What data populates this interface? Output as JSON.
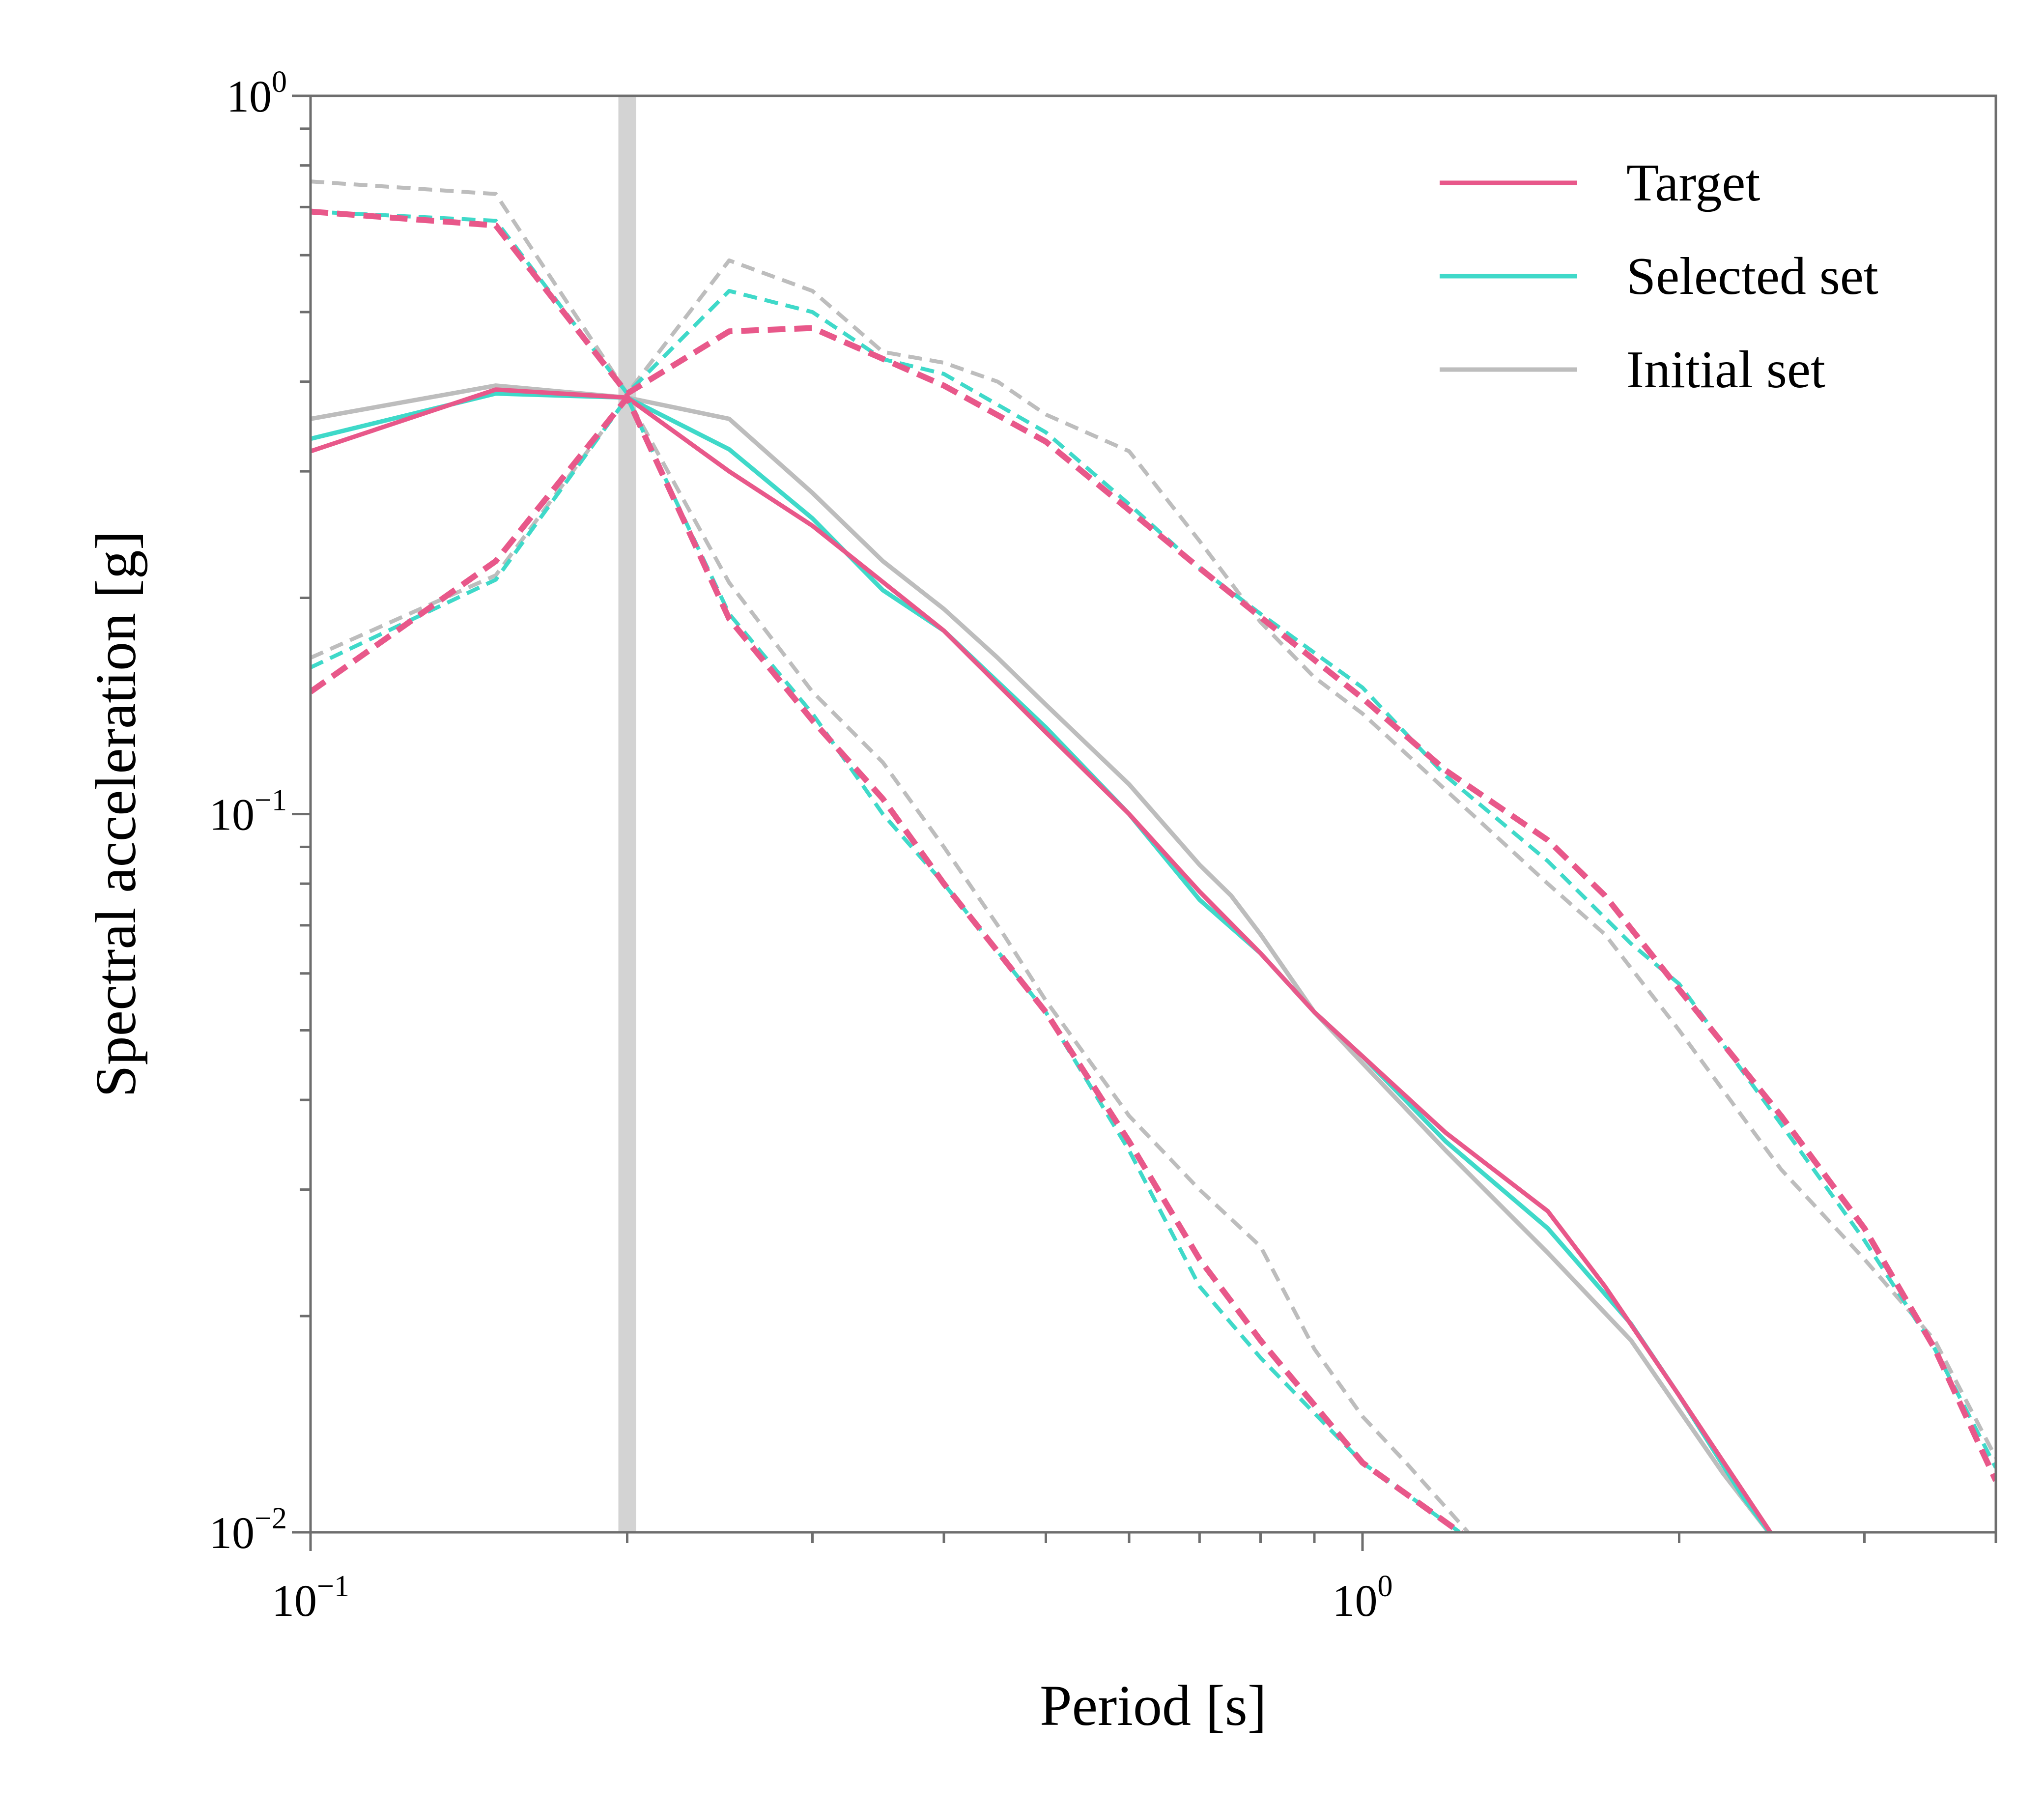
{
  "chart_data": {
    "type": "line",
    "xlabel": "Period [s]",
    "ylabel": "Spectral acceleration [g]",
    "xscale": "log",
    "yscale": "log",
    "xlim": [
      0.1,
      4.0
    ],
    "ylim": [
      0.01,
      1.0
    ],
    "x_major_ticks": [
      {
        "value": 0.1,
        "base": "10",
        "exp": "−1"
      },
      {
        "value": 1.0,
        "base": "10",
        "exp": "0"
      }
    ],
    "y_major_ticks": [
      {
        "value": 0.01,
        "base": "10",
        "exp": "−2"
      },
      {
        "value": 0.1,
        "base": "10",
        "exp": "−1"
      },
      {
        "value": 1.0,
        "base": "10",
        "exp": "0"
      }
    ],
    "grid": false,
    "legend_position": "top-right",
    "conditioning_period": 0.2,
    "colors": {
      "target": "#e8588a",
      "selected": "#3fd9c9",
      "initial": "#bdbdbd",
      "conditioning_line": "#d3d3d3"
    },
    "legend": [
      {
        "label": "Target",
        "key": "target"
      },
      {
        "label": "Selected set",
        "key": "selected"
      },
      {
        "label": "Initial set",
        "key": "initial"
      }
    ],
    "series": [
      {
        "key": "initial",
        "style": "median",
        "points": [
          [
            0.1,
            0.355
          ],
          [
            0.15,
            0.395
          ],
          [
            0.2,
            0.38
          ],
          [
            0.25,
            0.355
          ],
          [
            0.3,
            0.28
          ],
          [
            0.35,
            0.225
          ],
          [
            0.4,
            0.193
          ],
          [
            0.45,
            0.165
          ],
          [
            0.5,
            0.142
          ],
          [
            0.6,
            0.11
          ],
          [
            0.7,
            0.085
          ],
          [
            0.75,
            0.077
          ],
          [
            0.8,
            0.068
          ],
          [
            0.9,
            0.053
          ],
          [
            1.0,
            0.045
          ],
          [
            1.2,
            0.034
          ],
          [
            1.5,
            0.0245
          ],
          [
            1.8,
            0.0185
          ],
          [
            2.2,
            0.0121
          ],
          [
            2.5,
            0.0095
          ]
        ]
      },
      {
        "key": "selected",
        "style": "median",
        "points": [
          [
            0.1,
            0.333
          ],
          [
            0.15,
            0.385
          ],
          [
            0.2,
            0.38
          ],
          [
            0.25,
            0.322
          ],
          [
            0.3,
            0.258
          ],
          [
            0.35,
            0.205
          ],
          [
            0.4,
            0.18
          ],
          [
            0.5,
            0.132
          ],
          [
            0.6,
            0.1
          ],
          [
            0.7,
            0.076
          ],
          [
            0.8,
            0.064
          ],
          [
            0.9,
            0.053
          ],
          [
            1.0,
            0.046
          ],
          [
            1.2,
            0.035
          ],
          [
            1.5,
            0.0265
          ],
          [
            1.8,
            0.0195
          ],
          [
            2.0,
            0.0155
          ],
          [
            2.3,
            0.0112
          ],
          [
            2.5,
            0.0095
          ]
        ]
      },
      {
        "key": "target",
        "style": "median",
        "points": [
          [
            0.1,
            0.32
          ],
          [
            0.15,
            0.39
          ],
          [
            0.2,
            0.38
          ],
          [
            0.25,
            0.3
          ],
          [
            0.3,
            0.252
          ],
          [
            0.4,
            0.18
          ],
          [
            0.5,
            0.13
          ],
          [
            0.6,
            0.1
          ],
          [
            0.7,
            0.078
          ],
          [
            0.8,
            0.064
          ],
          [
            0.9,
            0.053
          ],
          [
            1.0,
            0.046
          ],
          [
            1.2,
            0.036
          ],
          [
            1.5,
            0.028
          ],
          [
            1.7,
            0.022
          ],
          [
            2.0,
            0.0155
          ],
          [
            2.5,
            0.0095
          ]
        ]
      },
      {
        "key": "initial",
        "style": "upper",
        "points": [
          [
            0.1,
            0.76
          ],
          [
            0.15,
            0.73
          ],
          [
            0.2,
            0.385
          ],
          [
            0.25,
            0.59
          ],
          [
            0.3,
            0.535
          ],
          [
            0.35,
            0.44
          ],
          [
            0.4,
            0.425
          ],
          [
            0.45,
            0.4
          ],
          [
            0.5,
            0.36
          ],
          [
            0.6,
            0.32
          ],
          [
            0.7,
            0.24
          ],
          [
            0.8,
            0.185
          ],
          [
            0.9,
            0.155
          ],
          [
            1.0,
            0.138
          ],
          [
            1.2,
            0.108
          ],
          [
            1.5,
            0.08
          ],
          [
            1.7,
            0.068
          ],
          [
            2.0,
            0.05
          ],
          [
            2.5,
            0.032
          ],
          [
            3.0,
            0.024
          ],
          [
            3.5,
            0.0185
          ],
          [
            4.0,
            0.0127
          ]
        ]
      },
      {
        "key": "selected",
        "style": "upper",
        "points": [
          [
            0.1,
            0.69
          ],
          [
            0.15,
            0.67
          ],
          [
            0.2,
            0.385
          ],
          [
            0.25,
            0.535
          ],
          [
            0.3,
            0.5
          ],
          [
            0.35,
            0.43
          ],
          [
            0.4,
            0.41
          ],
          [
            0.5,
            0.34
          ],
          [
            0.6,
            0.27
          ],
          [
            0.7,
            0.22
          ],
          [
            0.8,
            0.19
          ],
          [
            1.0,
            0.15
          ],
          [
            1.2,
            0.113
          ],
          [
            1.5,
            0.086
          ],
          [
            1.8,
            0.066
          ],
          [
            2.0,
            0.058
          ],
          [
            2.5,
            0.037
          ],
          [
            3.0,
            0.0255
          ],
          [
            3.5,
            0.018
          ],
          [
            4.0,
            0.0123
          ]
        ]
      },
      {
        "key": "target",
        "style": "upper",
        "points": [
          [
            0.1,
            0.69
          ],
          [
            0.15,
            0.66
          ],
          [
            0.2,
            0.385
          ],
          [
            0.25,
            0.47
          ],
          [
            0.3,
            0.475
          ],
          [
            0.4,
            0.395
          ],
          [
            0.5,
            0.33
          ],
          [
            0.6,
            0.265
          ],
          [
            0.7,
            0.22
          ],
          [
            0.8,
            0.188
          ],
          [
            1.0,
            0.145
          ],
          [
            1.2,
            0.115
          ],
          [
            1.5,
            0.092
          ],
          [
            1.7,
            0.077
          ],
          [
            2.0,
            0.057
          ],
          [
            2.5,
            0.038
          ],
          [
            3.0,
            0.0265
          ],
          [
            3.5,
            0.018
          ],
          [
            4.0,
            0.0118
          ]
        ]
      },
      {
        "key": "initial",
        "style": "lower",
        "points": [
          [
            0.1,
            0.165
          ],
          [
            0.15,
            0.215
          ],
          [
            0.2,
            0.38
          ],
          [
            0.25,
            0.21
          ],
          [
            0.3,
            0.148
          ],
          [
            0.35,
            0.118
          ],
          [
            0.4,
            0.09
          ],
          [
            0.45,
            0.07
          ],
          [
            0.5,
            0.055
          ],
          [
            0.6,
            0.038
          ],
          [
            0.7,
            0.03
          ],
          [
            0.8,
            0.025
          ],
          [
            0.9,
            0.018
          ],
          [
            1.0,
            0.0145
          ],
          [
            1.1,
            0.0125
          ],
          [
            1.3,
            0.0095
          ]
        ]
      },
      {
        "key": "selected",
        "style": "lower",
        "points": [
          [
            0.1,
            0.16
          ],
          [
            0.15,
            0.212
          ],
          [
            0.2,
            0.38
          ],
          [
            0.25,
            0.19
          ],
          [
            0.3,
            0.138
          ],
          [
            0.35,
            0.1
          ],
          [
            0.4,
            0.08
          ],
          [
            0.5,
            0.053
          ],
          [
            0.6,
            0.034
          ],
          [
            0.7,
            0.022
          ],
          [
            0.8,
            0.0175
          ],
          [
            1.0,
            0.0125
          ],
          [
            1.3,
            0.0095
          ]
        ]
      },
      {
        "key": "target",
        "style": "lower",
        "points": [
          [
            0.1,
            0.148
          ],
          [
            0.15,
            0.225
          ],
          [
            0.2,
            0.38
          ],
          [
            0.25,
            0.187
          ],
          [
            0.3,
            0.135
          ],
          [
            0.35,
            0.105
          ],
          [
            0.4,
            0.08
          ],
          [
            0.5,
            0.053
          ],
          [
            0.6,
            0.035
          ],
          [
            0.7,
            0.024
          ],
          [
            0.8,
            0.0185
          ],
          [
            1.0,
            0.0125
          ],
          [
            1.3,
            0.0095
          ]
        ]
      }
    ]
  }
}
